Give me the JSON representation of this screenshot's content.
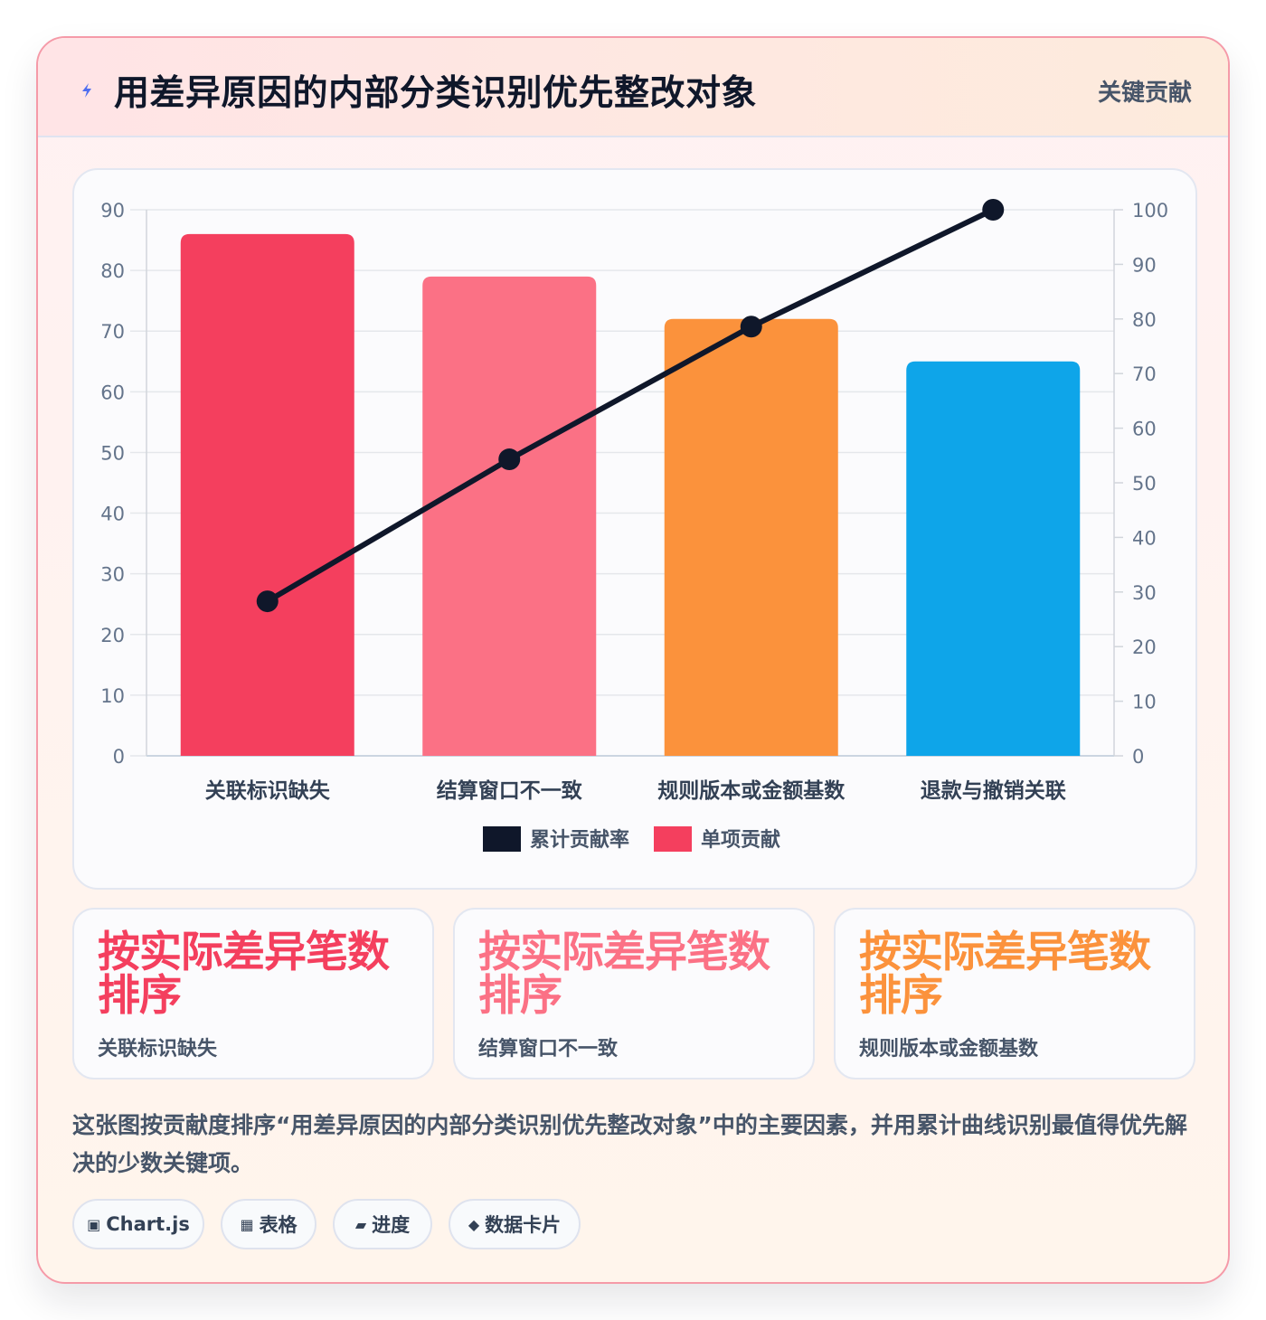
{
  "header": {
    "title": "用差异原因的内部分类识别优先整改对象",
    "badge": "关键贡献"
  },
  "chart_data": {
    "type": "bar",
    "categories": [
      "关联标识缺失",
      "结算窗口不一致",
      "规则版本或金额基数",
      "退款与撤销关联"
    ],
    "series": [
      {
        "name": "单项贡献",
        "type": "bar",
        "axis": "left",
        "values": [
          86,
          79,
          72,
          65
        ],
        "colors": [
          "#f43f5e",
          "#fb7185",
          "#fb923c",
          "#0ea5e9"
        ]
      },
      {
        "name": "累计贡献率",
        "type": "line",
        "axis": "right",
        "values": [
          28.3,
          54.3,
          78.6,
          100
        ],
        "color": "#0f172a"
      }
    ],
    "ylim_left": [
      0,
      90
    ],
    "yticks_left": [
      "0",
      "10",
      "20",
      "30",
      "40",
      "50",
      "60",
      "70",
      "80",
      "90"
    ],
    "ylim_right": [
      0,
      100
    ],
    "yticks_right": [
      "0",
      "10",
      "20",
      "30",
      "40",
      "50",
      "60",
      "70",
      "80",
      "90",
      "100"
    ],
    "legend": [
      {
        "label": "累计贡献率",
        "color": "#0f172a"
      },
      {
        "label": "单项贡献",
        "color": "#f43f5e"
      }
    ],
    "legend_position": "bottom",
    "grid": true
  },
  "stats": [
    {
      "value": "按实际差异笔数排序",
      "label": "关联标识缺失",
      "color": "#f43f5e"
    },
    {
      "value": "按实际差异笔数排序",
      "label": "结算窗口不一致",
      "color": "#fb7185"
    },
    {
      "value": "按实际差异笔数排序",
      "label": "规则版本或金额基数",
      "color": "#fb923c"
    }
  ],
  "description": "这张图按贡献度排序“用差异原因的内部分类识别优先整改对象”中的主要因素，并用累计曲线识别最值得优先解决的少数关键项。",
  "chips": [
    {
      "icon": "▣",
      "label": "Chart.js"
    },
    {
      "icon": "▦",
      "label": "表格"
    },
    {
      "icon": "▰",
      "label": "进度"
    },
    {
      "icon": "◆",
      "label": "数据卡片"
    }
  ]
}
